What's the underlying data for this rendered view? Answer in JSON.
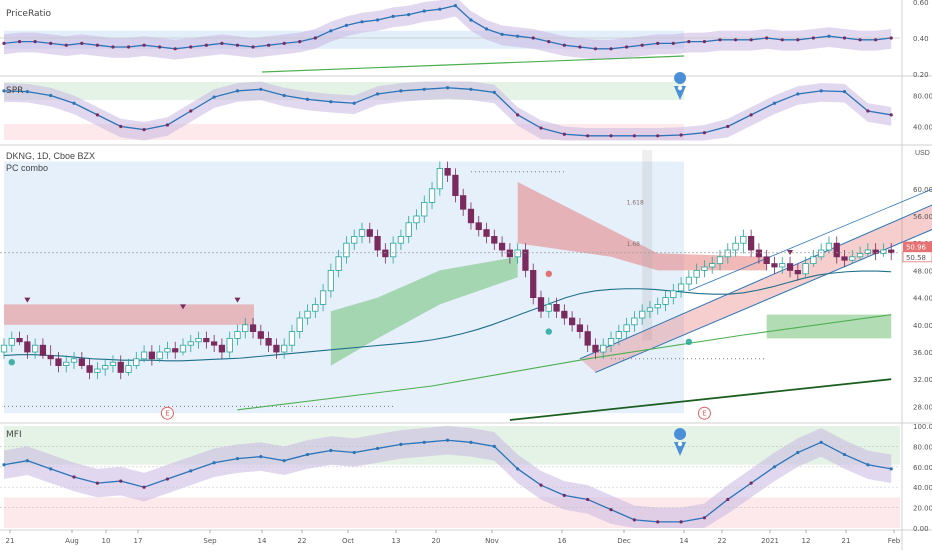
{
  "colors": {
    "up": "#26a69a",
    "down": "#7b2a5e",
    "blue_line": "#2b74b8",
    "ma_line": "#1f6f8b",
    "green_line": "#4caf50",
    "dark_green_line": "#1b5e20",
    "red_band": "#e57373",
    "green_band": "#66bb6a",
    "price_badge": "#e57373",
    "pin": "#4a90d9",
    "bg_blue": "#cfe3f5",
    "bg_purple": "#c8b6e2",
    "bg_green": "#dff0e0",
    "bg_red": "#fde3e6",
    "event_circle": "#e05d5d"
  },
  "header": {
    "symbol": "DKNG, 1D, Cboe BZX",
    "indicator": "PC combo",
    "usd": "USD"
  },
  "chart_data": [
    {
      "type": "line",
      "pane": "PriceRatio",
      "title": "PriceRatio",
      "ylim": [
        0.2,
        0.6
      ],
      "y_ticks": [
        "0.60",
        "0.40",
        "0.20"
      ],
      "x": [
        0,
        2,
        4,
        6,
        8,
        10,
        12,
        14,
        16,
        18,
        20,
        22,
        24,
        26,
        28,
        30,
        32,
        34,
        36,
        38,
        40,
        42,
        44,
        46,
        48,
        50,
        52,
        54,
        56,
        58,
        60,
        62,
        64,
        66,
        68,
        70,
        72,
        74,
        76,
        78,
        80,
        82,
        84,
        86,
        88,
        90,
        92,
        94,
        96,
        98,
        100,
        102,
        104,
        106,
        108,
        110,
        112,
        114
      ],
      "values": [
        0.37,
        0.38,
        0.38,
        0.37,
        0.36,
        0.37,
        0.36,
        0.35,
        0.35,
        0.36,
        0.35,
        0.34,
        0.35,
        0.36,
        0.37,
        0.36,
        0.35,
        0.36,
        0.37,
        0.38,
        0.4,
        0.44,
        0.47,
        0.49,
        0.5,
        0.52,
        0.53,
        0.55,
        0.56,
        0.58,
        0.5,
        0.45,
        0.42,
        0.41,
        0.4,
        0.38,
        0.36,
        0.35,
        0.34,
        0.34,
        0.35,
        0.36,
        0.37,
        0.37,
        0.38,
        0.38,
        0.39,
        0.39,
        0.39,
        0.4,
        0.39,
        0.39,
        0.4,
        0.41,
        0.4,
        0.39,
        0.39,
        0.4
      ],
      "last_value": "0.40"
    },
    {
      "type": "line",
      "pane": "SPR",
      "title": "SPR",
      "ylim": [
        20,
        100
      ],
      "y_ticks": [
        "80.00",
        "40.00"
      ],
      "x": [
        0,
        3,
        6,
        9,
        12,
        15,
        18,
        21,
        24,
        27,
        30,
        33,
        36,
        39,
        42,
        45,
        48,
        51,
        54,
        57,
        60,
        63,
        66,
        69,
        72,
        75,
        78,
        81,
        84,
        87,
        90,
        93,
        96,
        99,
        102,
        105,
        108,
        111,
        114
      ],
      "values": [
        86,
        85,
        80,
        70,
        55,
        40,
        36,
        42,
        60,
        78,
        86,
        88,
        80,
        75,
        72,
        70,
        82,
        86,
        88,
        90,
        88,
        84,
        55,
        38,
        30,
        28,
        28,
        28,
        28,
        29,
        32,
        40,
        55,
        70,
        82,
        86,
        85,
        60,
        55
      ]
    },
    {
      "type": "candlestick",
      "pane": "Main",
      "title": "DKNG, 1D, Cboe BZX",
      "subtitle": "PC combo",
      "ylim": [
        26,
        66
      ],
      "y_ticks": [
        "60.00",
        "56.00",
        "52.00",
        "48.00",
        "44.00",
        "40.00",
        "36.00",
        "32.00",
        "28.00"
      ],
      "price_labels": [
        "50.58",
        "50.96"
      ],
      "level_labels": [
        "1.618",
        "1.68"
      ],
      "event_label": "E",
      "x": [
        0,
        1,
        2,
        3,
        4,
        5,
        6,
        7,
        8,
        9,
        10,
        11,
        12,
        13,
        14,
        15,
        16,
        17,
        18,
        19,
        20,
        21,
        22,
        23,
        24,
        25,
        26,
        27,
        28,
        29,
        30,
        31,
        32,
        33,
        34,
        35,
        36,
        37,
        38,
        39,
        40,
        41,
        42,
        43,
        44,
        45,
        46,
        47,
        48,
        49,
        50,
        51,
        52,
        53,
        54,
        55,
        56,
        57,
        58,
        59,
        60,
        61,
        62,
        63,
        64,
        65,
        66,
        67,
        68,
        69,
        70,
        71,
        72,
        73,
        74,
        75,
        76,
        77,
        78,
        79,
        80,
        81,
        82,
        83,
        84,
        85,
        86,
        87,
        88,
        89,
        90,
        91,
        92,
        93,
        94,
        95,
        96,
        97,
        98,
        99,
        100,
        101,
        102,
        103,
        104,
        105,
        106,
        107,
        108,
        109,
        110,
        111,
        112,
        113,
        114
      ],
      "open": [
        36,
        37,
        38,
        37.5,
        36,
        37,
        35.5,
        35,
        34,
        34.5,
        35,
        34,
        33,
        33.5,
        34,
        34.5,
        33,
        34,
        35,
        36,
        35,
        36,
        36.5,
        36,
        37,
        37.5,
        38,
        37.5,
        37,
        36,
        38,
        39,
        40,
        39,
        38,
        37,
        36,
        37,
        39,
        41,
        42,
        43,
        45,
        48,
        50,
        52,
        53,
        54,
        53,
        51,
        50,
        52,
        53,
        55,
        56,
        58,
        60,
        63,
        62,
        59,
        57,
        55,
        54,
        53,
        52,
        51,
        50,
        51,
        48,
        44,
        42,
        43,
        42,
        41,
        40,
        39,
        37,
        36,
        37,
        38,
        39,
        40,
        41,
        42,
        42.5,
        43,
        44,
        45,
        46,
        47,
        48,
        48.5,
        49,
        50,
        51,
        52,
        53,
        51,
        50,
        49,
        48.5,
        49,
        48,
        47.5,
        49,
        50,
        51,
        52,
        50,
        49.5,
        50,
        50.5,
        51,
        50.5,
        51
      ],
      "close": [
        37,
        38,
        37.5,
        36,
        37,
        35.5,
        35,
        34,
        34.5,
        35,
        34,
        33,
        33.5,
        34,
        34.5,
        33,
        34,
        35,
        36,
        35,
        36,
        36.5,
        36,
        37,
        37.5,
        38,
        37.5,
        37,
        36,
        38,
        39,
        40,
        39,
        38,
        37,
        36,
        37,
        39,
        41,
        42,
        43,
        45,
        48,
        50,
        52,
        53,
        54,
        53,
        51,
        50,
        52,
        53,
        55,
        56,
        58,
        60,
        63,
        62,
        59,
        57,
        55,
        54,
        53,
        52,
        51,
        50,
        51,
        48,
        44,
        42,
        43,
        42,
        41,
        40,
        39,
        37,
        36,
        37,
        38,
        39,
        40,
        41,
        42,
        42.5,
        43,
        44,
        45,
        46,
        47,
        48,
        48.5,
        49,
        50,
        51,
        52,
        53,
        51,
        50,
        49,
        48.5,
        49,
        48,
        47.5,
        49,
        50,
        51,
        52,
        50,
        49.5,
        50,
        50.5,
        51,
        50.5,
        51,
        50.6
      ],
      "high": [
        38,
        39,
        39,
        38.5,
        38,
        38,
        37,
        36,
        35.5,
        36,
        36,
        35,
        34.5,
        35,
        35.5,
        35.5,
        35,
        36,
        37,
        37,
        37,
        37.5,
        37.5,
        38,
        38.5,
        39,
        39,
        38.5,
        38,
        39,
        40,
        41,
        41,
        40,
        39,
        38,
        38,
        40,
        42,
        43,
        44,
        46,
        49,
        51,
        53,
        54,
        55,
        55,
        54,
        52,
        53,
        54,
        56,
        57,
        59,
        61,
        64,
        64,
        63,
        60,
        58,
        56,
        55,
        54,
        53,
        52,
        52,
        52,
        49,
        45,
        44,
        44,
        43,
        42,
        41,
        40,
        38,
        38,
        39,
        40,
        41,
        42,
        43,
        43.5,
        44,
        45,
        46,
        47,
        48,
        49,
        49.5,
        50,
        51,
        52,
        53,
        54,
        54,
        52,
        51,
        50,
        50,
        50,
        49,
        50,
        51,
        52,
        53,
        53,
        51,
        51,
        51.5,
        52,
        52,
        52,
        52
      ],
      "low": [
        35,
        36,
        37,
        35,
        35,
        35,
        34,
        33,
        33,
        33.5,
        33.5,
        32,
        32,
        32.5,
        33,
        32,
        32.5,
        33.5,
        34.5,
        34,
        34.5,
        35,
        35,
        35.5,
        36,
        36.5,
        36.5,
        36,
        35,
        35,
        37,
        38,
        38,
        37,
        36,
        35,
        35,
        36,
        38,
        40,
        41,
        42,
        44,
        47,
        49,
        51,
        52,
        52,
        50,
        49,
        49,
        51,
        52,
        54,
        55,
        57,
        59,
        61,
        58,
        56,
        54,
        53,
        52,
        51,
        50,
        49,
        49,
        47,
        43,
        41,
        41,
        41,
        40,
        39,
        38,
        36,
        35,
        35,
        36,
        37,
        38,
        39,
        40,
        41,
        41.5,
        42,
        43,
        44,
        45,
        46,
        47,
        47.5,
        48,
        49,
        50,
        50.5,
        50,
        49,
        48,
        47.5,
        47.5,
        47,
        46.5,
        47,
        48.5,
        49.5,
        50.5,
        49,
        48.5,
        49,
        49.5,
        50,
        49.5,
        50,
        49.5
      ],
      "ma_series": [
        35.5,
        35.6,
        35.6,
        35.5,
        35.4,
        35.2,
        35,
        34.9,
        34.8,
        34.8,
        34.8,
        34.7,
        34.7,
        34.8,
        34.9,
        35,
        35.1,
        35.3,
        35.5,
        35.7,
        35.9,
        36.1,
        36.3,
        36.5,
        36.7,
        36.9,
        37.1,
        37.3,
        37.5,
        37.8,
        38.2,
        38.7,
        39.3,
        40,
        40.8,
        41.6,
        42.4,
        43.2,
        44,
        44.6,
        45,
        45.2,
        45.3,
        45.3,
        45.2,
        45,
        44.8,
        44.6,
        44.5,
        44.5,
        44.7,
        45.1,
        45.6,
        46.2,
        46.8,
        47.3,
        47.6,
        47.8,
        47.9,
        47.9,
        47.8
      ],
      "long_ma": [
        26,
        26.5,
        27,
        27.6,
        28.2,
        28.8,
        29.5,
        30.2,
        31,
        31.8,
        32.6,
        33.4,
        34.2,
        35,
        35.8,
        36.5,
        37.2,
        37.8,
        38.4,
        39,
        39.6,
        40.2,
        40.7,
        41.2
      ]
    },
    {
      "type": "line",
      "pane": "MFI",
      "title": "MFI",
      "ylim": [
        0,
        100
      ],
      "y_ticks": [
        "100.00",
        "80.00",
        "60.00",
        "40.00",
        "20.00",
        "0.00"
      ],
      "x": [
        0,
        3,
        6,
        9,
        12,
        15,
        18,
        21,
        24,
        27,
        30,
        33,
        36,
        39,
        42,
        45,
        48,
        51,
        54,
        57,
        60,
        63,
        66,
        69,
        72,
        75,
        78,
        81,
        84,
        87,
        90,
        93,
        96,
        99,
        102,
        105,
        108,
        111,
        114
      ],
      "values": [
        62,
        66,
        58,
        50,
        44,
        46,
        40,
        48,
        56,
        64,
        68,
        70,
        66,
        72,
        76,
        74,
        78,
        82,
        84,
        86,
        84,
        80,
        58,
        42,
        32,
        28,
        18,
        8,
        6,
        6,
        10,
        28,
        44,
        60,
        74,
        84,
        72,
        62,
        58
      ]
    }
  ],
  "xaxis": {
    "labels": [
      "21",
      "Aug",
      "10",
      "17",
      "Sep",
      "14",
      "22",
      "Oct",
      "13",
      "20",
      "Nov",
      "16",
      "Dec",
      "14",
      "22",
      "2021",
      "12",
      "21",
      "Feb"
    ]
  }
}
